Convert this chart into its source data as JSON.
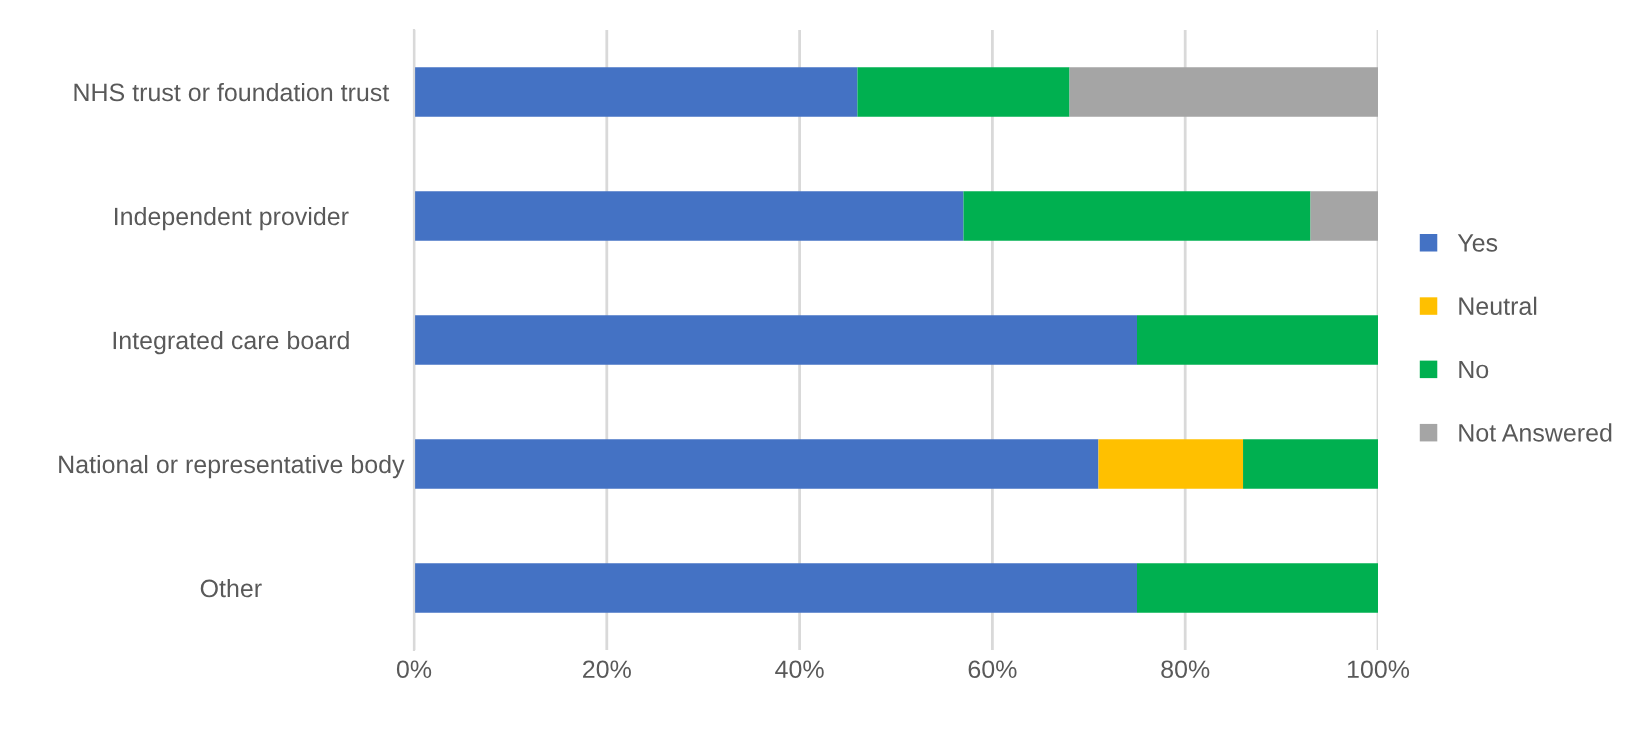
{
  "chart_data": {
    "type": "bar",
    "orientation": "horizontal",
    "stacked": true,
    "categories": [
      "NHS trust or foundation trust",
      "Independent provider",
      "Integrated care board",
      "National or representative body",
      "Other"
    ],
    "series": [
      {
        "name": "Yes",
        "color": "#4472c4",
        "values": [
          46,
          57,
          75,
          71,
          75
        ]
      },
      {
        "name": "Neutral",
        "color": "#ffc000",
        "values": [
          0,
          0,
          0,
          15,
          0
        ]
      },
      {
        "name": "No",
        "color": "#00b050",
        "values": [
          22,
          36,
          25,
          14,
          25
        ]
      },
      {
        "name": "Not Answered",
        "color": "#a5a5a5",
        "values": [
          32,
          7,
          0,
          0,
          0
        ]
      }
    ],
    "xlim": [
      0,
      100
    ],
    "xticks": [
      {
        "value": 0,
        "label": "0%"
      },
      {
        "value": 20,
        "label": "20%"
      },
      {
        "value": 40,
        "label": "40%"
      },
      {
        "value": 60,
        "label": "60%"
      },
      {
        "value": 80,
        "label": "80%"
      },
      {
        "value": 100,
        "label": "100%"
      }
    ],
    "grid": "x",
    "legend": "right"
  }
}
